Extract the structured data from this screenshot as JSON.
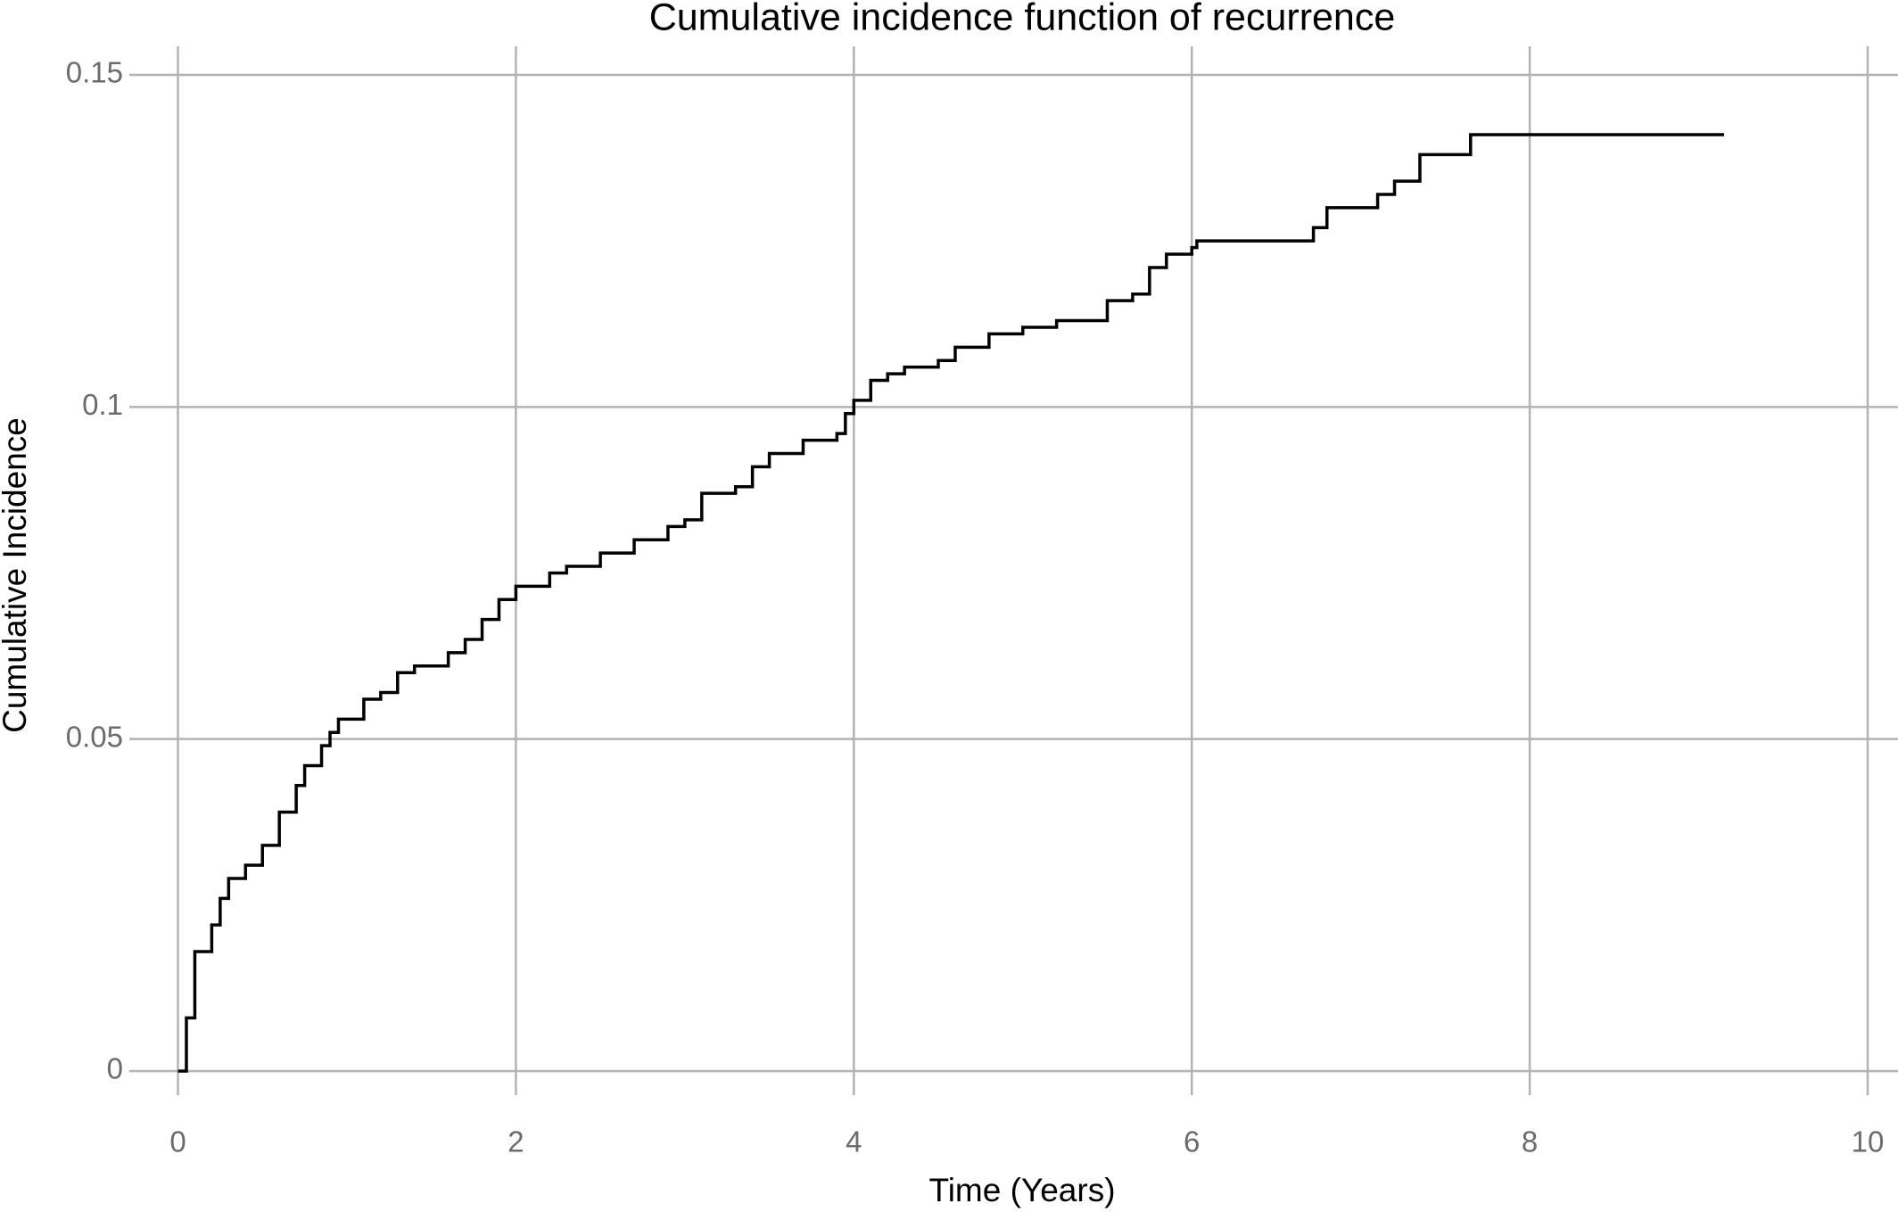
{
  "chart_data": {
    "type": "line",
    "step": true,
    "title": "Cumulative incidence function of recurrence",
    "x_label": "Time (Years)",
    "y_label": "Cumulative Incidence",
    "xlim": [
      0,
      10
    ],
    "ylim": [
      0,
      0.15
    ],
    "xticks": [
      0,
      2,
      4,
      6,
      8,
      10
    ],
    "yticks": [
      0,
      0.05,
      0.1,
      0.15
    ],
    "grid": true,
    "series": [
      {
        "name": "Recurrence",
        "color": "#000000",
        "x": [
          0,
          0.05,
          0.1,
          0.15,
          0.2,
          0.25,
          0.3,
          0.4,
          0.5,
          0.6,
          0.7,
          0.75,
          0.85,
          0.9,
          0.95,
          1.1,
          1.2,
          1.3,
          1.4,
          1.6,
          1.7,
          1.8,
          1.9,
          2.0,
          2.2,
          2.3,
          2.5,
          2.7,
          2.9,
          3.0,
          3.1,
          3.3,
          3.4,
          3.5,
          3.7,
          3.9,
          3.95,
          4.0,
          4.1,
          4.2,
          4.3,
          4.5,
          4.6,
          4.8,
          5.0,
          5.2,
          5.5,
          5.65,
          5.75,
          5.85,
          6.0,
          6.03,
          6.72,
          6.8,
          7.1,
          7.2,
          7.35,
          7.65,
          9.15
        ],
        "values": [
          0,
          0.008,
          0.018,
          0.018,
          0.022,
          0.026,
          0.029,
          0.031,
          0.034,
          0.039,
          0.043,
          0.046,
          0.049,
          0.051,
          0.053,
          0.056,
          0.057,
          0.06,
          0.061,
          0.063,
          0.065,
          0.068,
          0.071,
          0.073,
          0.075,
          0.076,
          0.078,
          0.08,
          0.082,
          0.083,
          0.087,
          0.088,
          0.091,
          0.093,
          0.095,
          0.096,
          0.099,
          0.101,
          0.104,
          0.105,
          0.106,
          0.107,
          0.109,
          0.111,
          0.112,
          0.113,
          0.116,
          0.117,
          0.121,
          0.123,
          0.124,
          0.125,
          0.127,
          0.13,
          0.132,
          0.134,
          0.138,
          0.141,
          0.141
        ]
      }
    ]
  }
}
